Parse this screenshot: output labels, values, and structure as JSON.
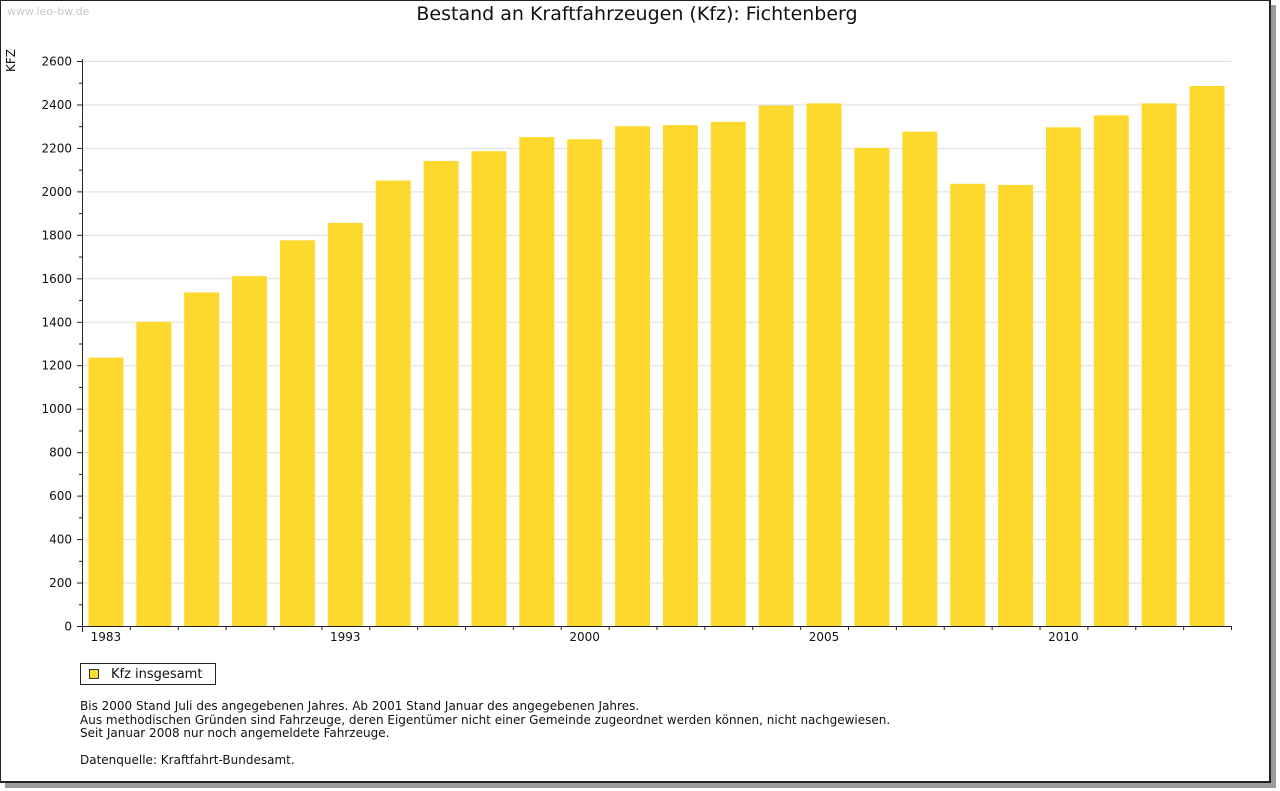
{
  "watermark": "www.leo-bw.de",
  "colors": {
    "bar": "#fdd92d",
    "grid": "#dddddd",
    "axis": "#222222"
  },
  "legend": {
    "label": "Kfz insgesamt",
    "icon": "square-swatch"
  },
  "notes": [
    "Bis 2000 Stand Juli des angegebenen Jahres. Ab 2001 Stand Januar des angegebenen Jahres.",
    "Aus methodischen Gründen sind Fahrzeuge, deren Eigentümer nicht einer Gemeinde zugeordnet werden können, nicht nachgewiesen.",
    "Seit Januar 2008 nur noch angemeldete Fahrzeuge."
  ],
  "source": "Datenquelle: Kraftfahrt-Bundesamt.",
  "chart_data": {
    "type": "bar",
    "title": "Bestand an Kraftfahrzeugen (Kfz): Fichtenberg",
    "ylabel": "KFZ",
    "xlabel": "",
    "ylim": [
      0,
      2600
    ],
    "yticks": [
      0,
      200,
      400,
      600,
      800,
      1000,
      1200,
      1400,
      1600,
      1800,
      2000,
      2200,
      2400,
      2600
    ],
    "grid": true,
    "legend_position": "bottom-left",
    "x_tick_labels": [
      {
        "index": 0,
        "label": "1983"
      },
      {
        "index": 5,
        "label": "1993"
      },
      {
        "index": 10,
        "label": "2000"
      },
      {
        "index": 15,
        "label": "2005"
      },
      {
        "index": 20,
        "label": "2010"
      }
    ],
    "series": [
      {
        "name": "Kfz insgesamt",
        "values": [
          1235,
          1400,
          1535,
          1610,
          1775,
          1855,
          2050,
          2140,
          2185,
          2250,
          2240,
          2300,
          2305,
          2320,
          2395,
          2405,
          2200,
          2275,
          2035,
          2030,
          2295,
          2350,
          2405,
          2485
        ]
      }
    ]
  }
}
